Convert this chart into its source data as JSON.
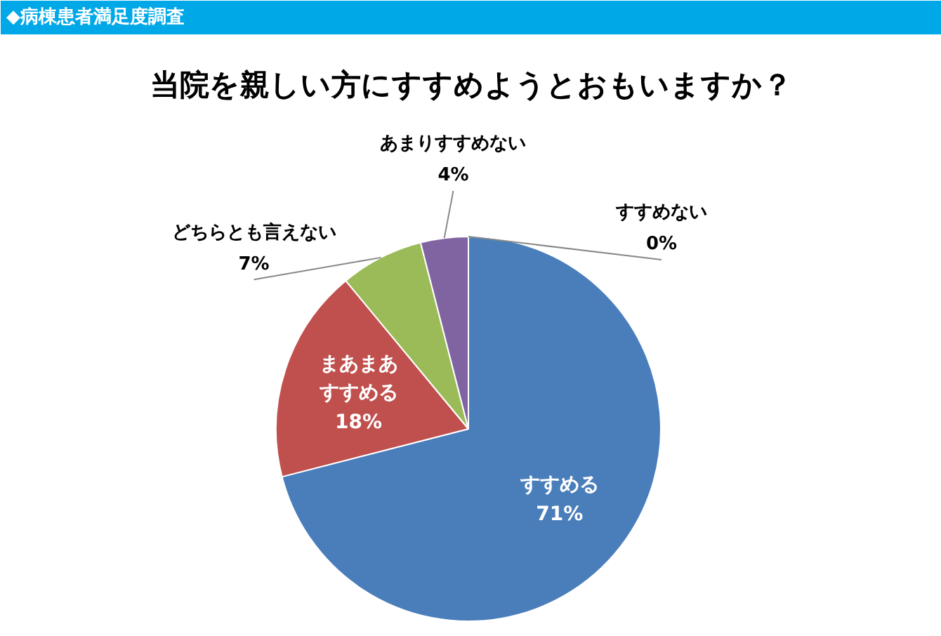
{
  "chart_data": {
    "type": "pie",
    "subtitle": "◆病棟患者満足度調査",
    "title": "当院を親しい方にすすめようとおもいますか？",
    "categories": [
      "すすめる",
      "まあまあすすめる",
      "どちらとも言えない",
      "あまりすすめない",
      "すすめない"
    ],
    "values": [
      71,
      18,
      7,
      4,
      0
    ],
    "colors": [
      "#4a7ebb",
      "#c0504d",
      "#9bbb59",
      "#8064a2",
      "#4bacc6"
    ],
    "value_labels": [
      "71%",
      "18%",
      "7%",
      "4%",
      "0%"
    ]
  }
}
